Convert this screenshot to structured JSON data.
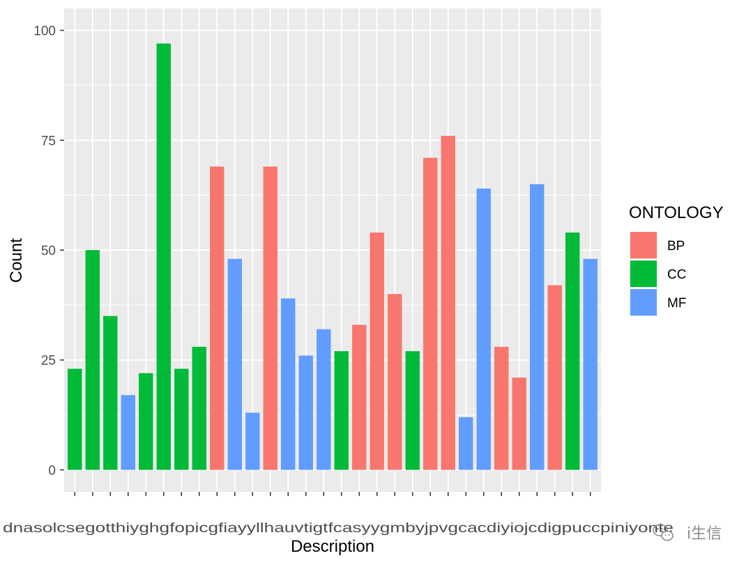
{
  "chart_data": {
    "type": "bar",
    "xlabel": "Description",
    "ylabel": "Count",
    "ylim": [
      0,
      100
    ],
    "y_ticks": [
      0,
      25,
      50,
      75,
      100
    ],
    "grid": true,
    "legend": {
      "title": "ONTOLOGY",
      "placement": "right",
      "entries": [
        {
          "name": "BP",
          "color": "#F8766D"
        },
        {
          "name": "CC",
          "color": "#00BA38"
        },
        {
          "name": "MF",
          "color": "#619CFF"
        }
      ]
    },
    "categories_overlapping_note": "",
    "bars": [
      {
        "value": 23,
        "group": "CC"
      },
      {
        "value": 50,
        "group": "CC"
      },
      {
        "value": 35,
        "group": "CC"
      },
      {
        "value": 17,
        "group": "MF"
      },
      {
        "value": 22,
        "group": "CC"
      },
      {
        "value": 97,
        "group": "CC"
      },
      {
        "value": 23,
        "group": "CC"
      },
      {
        "value": 28,
        "group": "CC"
      },
      {
        "value": 69,
        "group": "BP"
      },
      {
        "value": 48,
        "group": "MF"
      },
      {
        "value": 13,
        "group": "MF"
      },
      {
        "value": 69,
        "group": "BP"
      },
      {
        "value": 39,
        "group": "MF"
      },
      {
        "value": 26,
        "group": "MF"
      },
      {
        "value": 32,
        "group": "MF"
      },
      {
        "value": 27,
        "group": "CC"
      },
      {
        "value": 33,
        "group": "BP"
      },
      {
        "value": 54,
        "group": "BP"
      },
      {
        "value": 40,
        "group": "BP"
      },
      {
        "value": 27,
        "group": "CC"
      },
      {
        "value": 71,
        "group": "BP"
      },
      {
        "value": 76,
        "group": "BP"
      },
      {
        "value": 12,
        "group": "MF"
      },
      {
        "value": 64,
        "group": "MF"
      },
      {
        "value": 28,
        "group": "BP"
      },
      {
        "value": 21,
        "group": "BP"
      },
      {
        "value": 65,
        "group": "MF"
      },
      {
        "value": 42,
        "group": "BP"
      },
      {
        "value": 54,
        "group": "CC"
      },
      {
        "value": 48,
        "group": "MF"
      }
    ],
    "x_tick_labels_overlapping": "dnasolcsegotthiyghgfopicgfiayyllhauvtigtfcasyygmbyjpvgcacdiyiojcdigpuccpiniyonte"
  },
  "watermark": {
    "text": "i生信"
  }
}
